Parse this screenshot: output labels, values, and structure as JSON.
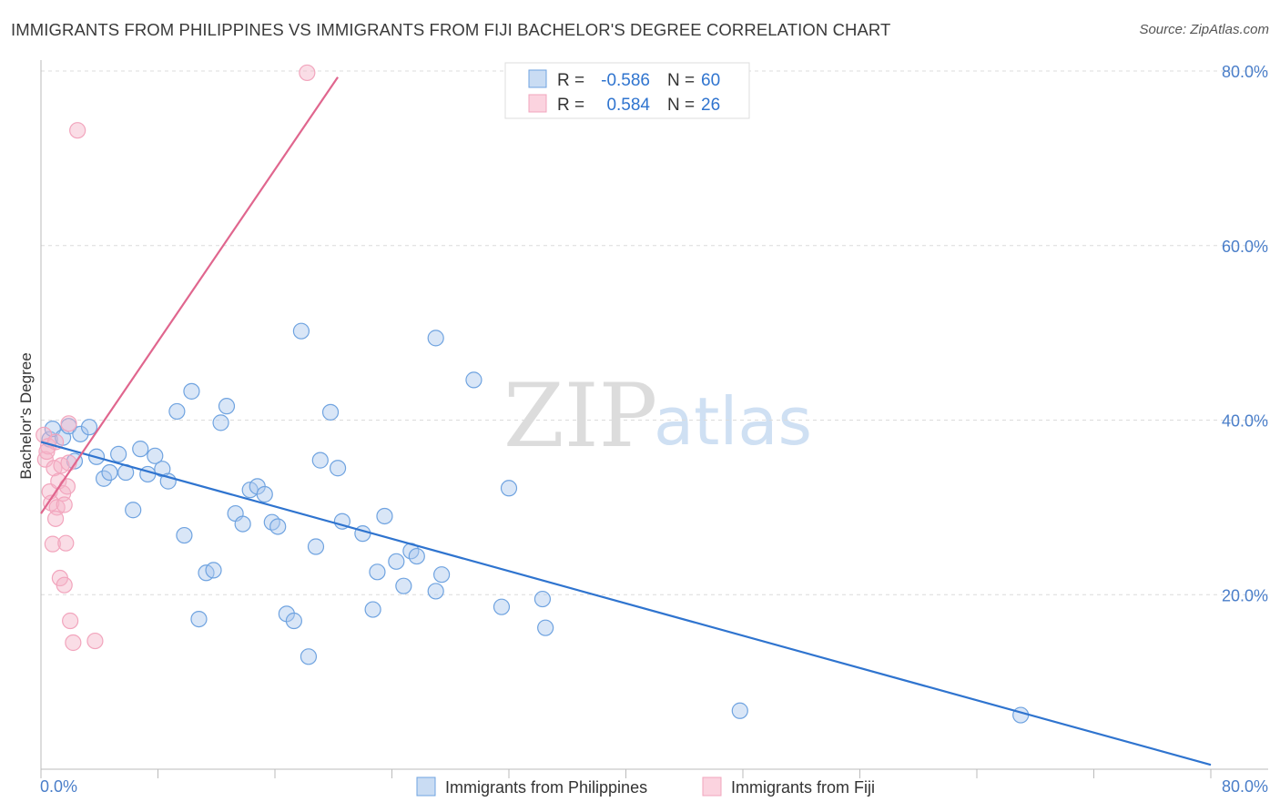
{
  "header": {
    "title": "IMMIGRANTS FROM PHILIPPINES VS IMMIGRANTS FROM FIJI BACHELOR'S DEGREE CORRELATION CHART",
    "source": "Source: ZipAtlas.com"
  },
  "watermark": {
    "zip": "ZIP",
    "atlas": "atlas"
  },
  "chart_data": {
    "type": "scatter",
    "xlabel": "",
    "ylabel": "Bachelor's Degree",
    "xlim": [
      0,
      80
    ],
    "ylim": [
      0,
      80
    ],
    "x_tick_labels": [
      "0.0%",
      "80.0%"
    ],
    "y_ticks": [
      20,
      40,
      60,
      80
    ],
    "y_tick_labels": [
      "20.0%",
      "40.0%",
      "60.0%",
      "80.0%"
    ],
    "grid": true,
    "legend_position": "top-center",
    "series": [
      {
        "name": "Immigrants from Philippines",
        "color": "#6fa3e0",
        "line_color": "#2f74cf",
        "r": "-0.586",
        "n": "60",
        "trend": [
          [
            0,
            37.5
          ],
          [
            80,
            0.5
          ]
        ],
        "points": [
          [
            0.6,
            37.8
          ],
          [
            0.8,
            39.0
          ],
          [
            1.5,
            38.0
          ],
          [
            1.9,
            39.3
          ],
          [
            2.3,
            35.3
          ],
          [
            2.7,
            38.4
          ],
          [
            3.3,
            39.2
          ],
          [
            3.8,
            35.8
          ],
          [
            4.3,
            33.3
          ],
          [
            4.7,
            34.0
          ],
          [
            5.3,
            36.1
          ],
          [
            5.8,
            34.0
          ],
          [
            6.3,
            29.7
          ],
          [
            6.8,
            36.7
          ],
          [
            7.3,
            33.8
          ],
          [
            7.8,
            35.9
          ],
          [
            8.3,
            34.4
          ],
          [
            8.7,
            33.0
          ],
          [
            9.3,
            41.0
          ],
          [
            9.8,
            26.8
          ],
          [
            10.3,
            43.3
          ],
          [
            10.8,
            17.2
          ],
          [
            11.3,
            22.5
          ],
          [
            11.8,
            22.8
          ],
          [
            12.3,
            39.7
          ],
          [
            12.7,
            41.6
          ],
          [
            13.3,
            29.3
          ],
          [
            13.8,
            28.1
          ],
          [
            14.3,
            32.0
          ],
          [
            14.8,
            32.4
          ],
          [
            15.3,
            31.5
          ],
          [
            15.8,
            28.3
          ],
          [
            16.2,
            27.8
          ],
          [
            16.8,
            17.8
          ],
          [
            17.3,
            17.0
          ],
          [
            17.8,
            50.2
          ],
          [
            18.3,
            12.9
          ],
          [
            18.8,
            25.5
          ],
          [
            19.1,
            35.4
          ],
          [
            19.8,
            40.9
          ],
          [
            20.3,
            34.5
          ],
          [
            20.6,
            28.4
          ],
          [
            22.0,
            27.0
          ],
          [
            22.7,
            18.3
          ],
          [
            23.0,
            22.6
          ],
          [
            23.5,
            29.0
          ],
          [
            24.3,
            23.8
          ],
          [
            24.8,
            21.0
          ],
          [
            25.3,
            25.0
          ],
          [
            25.7,
            24.4
          ],
          [
            27.0,
            20.4
          ],
          [
            27.4,
            22.3
          ],
          [
            27.0,
            49.4
          ],
          [
            29.6,
            44.6
          ],
          [
            31.5,
            18.6
          ],
          [
            32.0,
            32.2
          ],
          [
            34.3,
            19.5
          ],
          [
            34.5,
            16.2
          ],
          [
            47.8,
            6.7
          ],
          [
            67.0,
            6.2
          ]
        ]
      },
      {
        "name": "Immigrants from Fiji",
        "color": "#f2a5bd",
        "line_color": "#e0668e",
        "r": "0.584",
        "n": "26",
        "trend": [
          [
            0,
            29.3
          ],
          [
            20.3,
            79.3
          ]
        ],
        "points": [
          [
            0.2,
            38.3
          ],
          [
            0.3,
            35.5
          ],
          [
            0.5,
            37.0
          ],
          [
            0.6,
            31.8
          ],
          [
            0.7,
            30.5
          ],
          [
            0.8,
            25.8
          ],
          [
            0.9,
            34.5
          ],
          [
            1.0,
            37.5
          ],
          [
            1.1,
            30.0
          ],
          [
            1.2,
            33.0
          ],
          [
            1.3,
            21.9
          ],
          [
            1.4,
            34.8
          ],
          [
            1.5,
            31.6
          ],
          [
            1.6,
            30.3
          ],
          [
            1.6,
            21.1
          ],
          [
            1.7,
            25.9
          ],
          [
            1.8,
            32.4
          ],
          [
            1.9,
            39.6
          ],
          [
            2.0,
            17.0
          ],
          [
            2.2,
            14.5
          ],
          [
            3.7,
            14.7
          ],
          [
            2.5,
            73.2
          ],
          [
            18.2,
            79.8
          ],
          [
            0.4,
            36.4
          ],
          [
            1.0,
            28.7
          ],
          [
            1.9,
            35.1
          ]
        ]
      }
    ]
  }
}
